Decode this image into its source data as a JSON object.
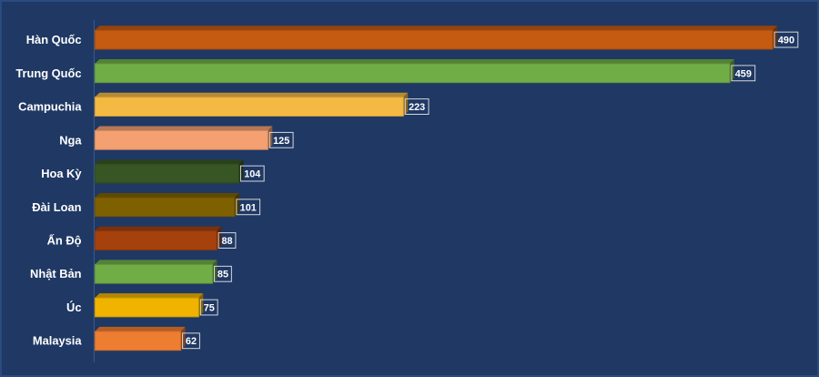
{
  "chart_data": {
    "type": "bar",
    "orientation": "horizontal",
    "title": "",
    "xlabel": "",
    "ylabel": "",
    "xlim": [
      0,
      500
    ],
    "grid": false,
    "legend": "none",
    "background_color": "#1f3864",
    "categories": [
      "Hàn Quốc",
      "Trung Quốc",
      "Campuchia",
      "Nga",
      "Hoa Kỳ",
      "Đài Loan",
      "Ấn Độ",
      "Nhật Bản",
      "Úc",
      "Malaysia"
    ],
    "values": [
      490,
      459,
      223,
      125,
      104,
      101,
      88,
      85,
      75,
      62
    ],
    "bar_colors": [
      "#c55a11",
      "#70ad47",
      "#f4b942",
      "#f4a071",
      "#375623",
      "#7f6000",
      "#a5410d",
      "#70ad47",
      "#f0b400",
      "#ed7d31"
    ]
  }
}
